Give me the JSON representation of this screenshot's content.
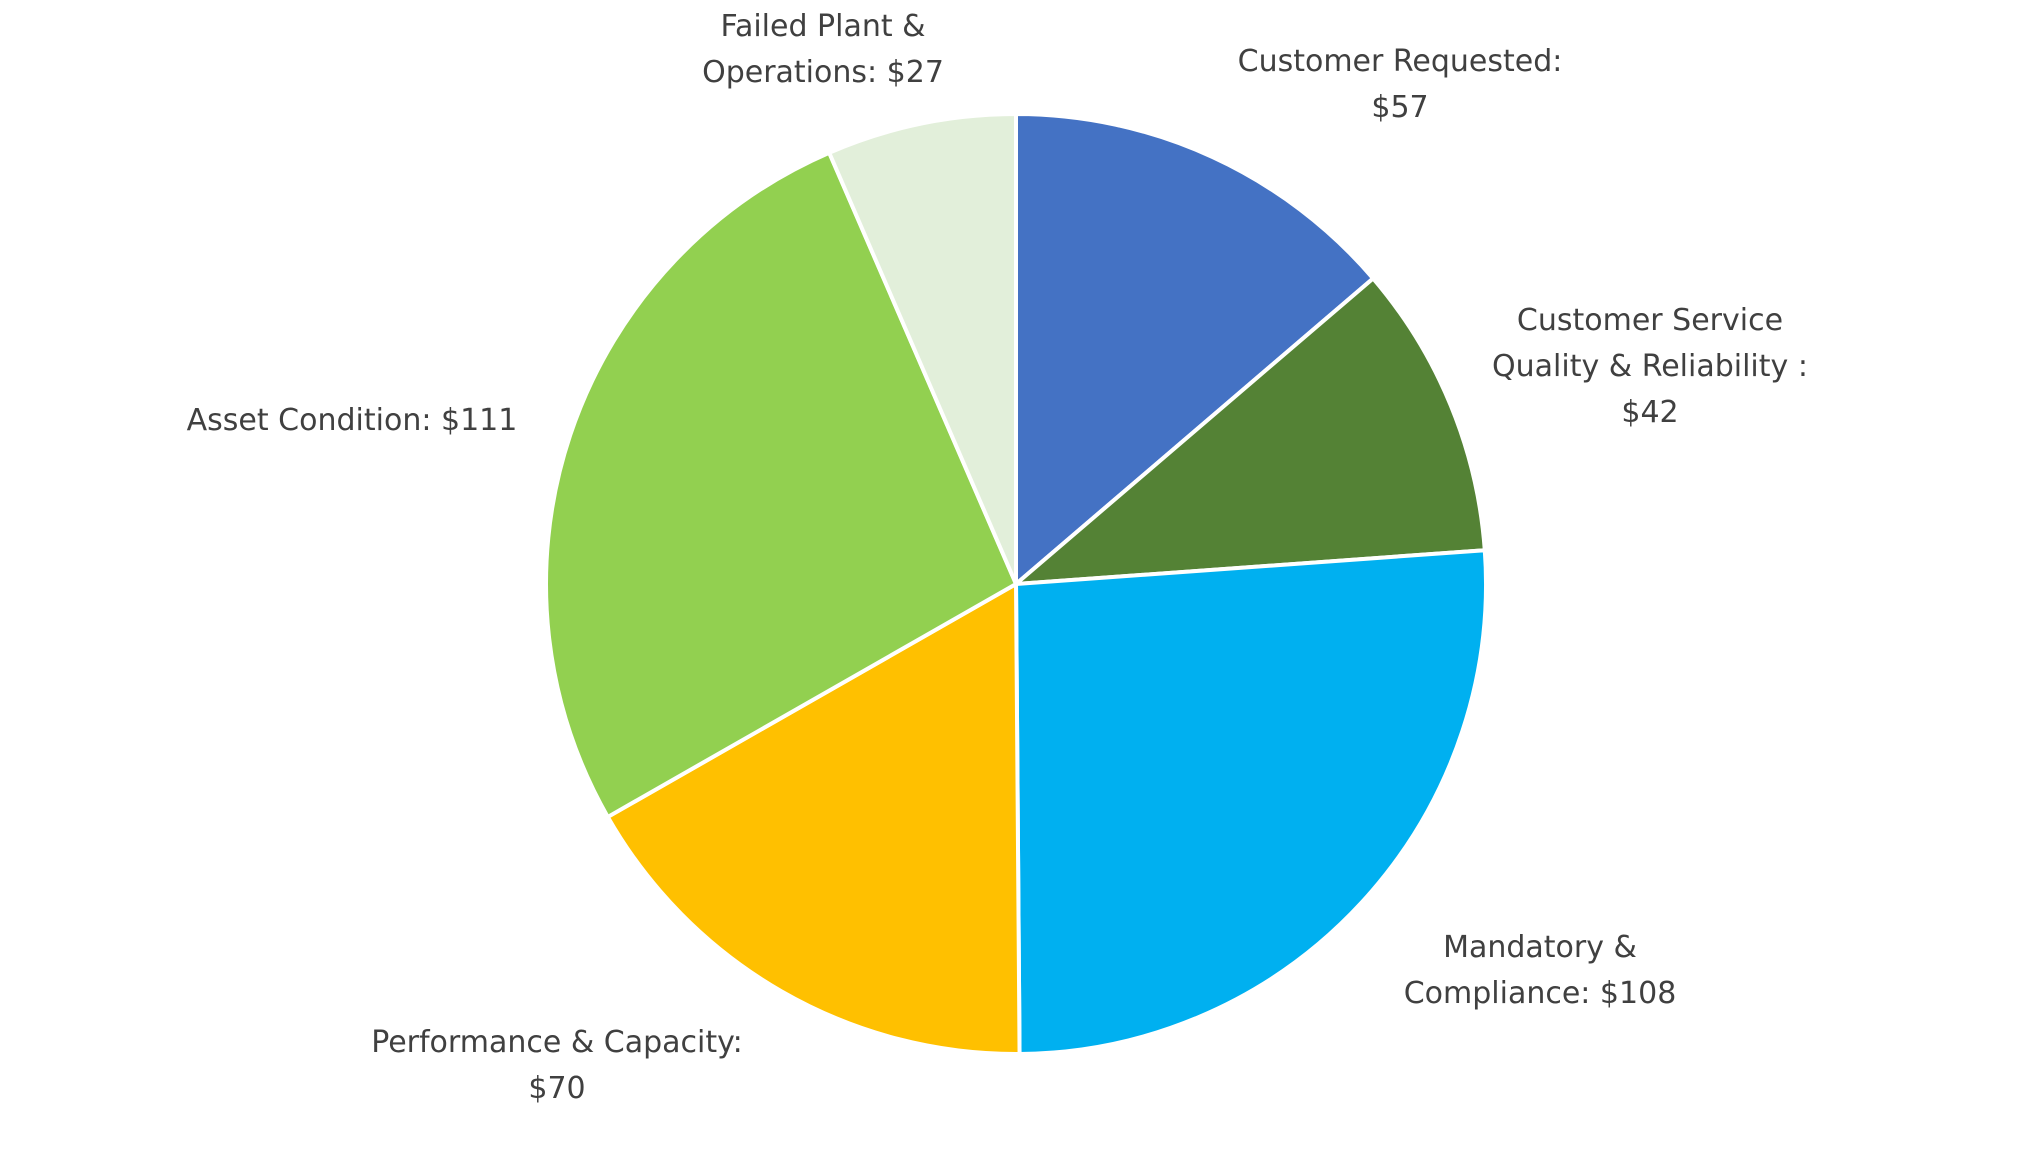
{
  "chart_data": {
    "type": "pie",
    "title": "",
    "start_angle_deg": 0,
    "direction": "clockwise",
    "legend": "none",
    "slices": [
      {
        "category": "Customer Requested",
        "value": 57,
        "label_lines": [
          "Customer Requested:",
          "$57"
        ],
        "color": "#4472C4"
      },
      {
        "category": "Customer Service Quality & Reliability",
        "value": 42,
        "label_lines": [
          "Customer Service",
          "Quality & Reliability :",
          "$42"
        ],
        "color": "#548235"
      },
      {
        "category": "Mandatory & Compliance",
        "value": 108,
        "label_lines": [
          "Mandatory &",
          "Compliance:  $108"
        ],
        "color": "#00B0F0"
      },
      {
        "category": "Performance & Capacity",
        "value": 70,
        "label_lines": [
          "Performance & Capacity:",
          "$70"
        ],
        "color": "#FFC000"
      },
      {
        "category": "Asset Condition",
        "value": 111,
        "label_lines": [
          "Asset Condition:  $111"
        ],
        "color": "#92D050"
      },
      {
        "category": "Failed Plant & Operations",
        "value": 27,
        "label_lines": [
          "Failed Plant &",
          "Operations:  $27"
        ],
        "color": "#E2EFDA"
      }
    ]
  }
}
